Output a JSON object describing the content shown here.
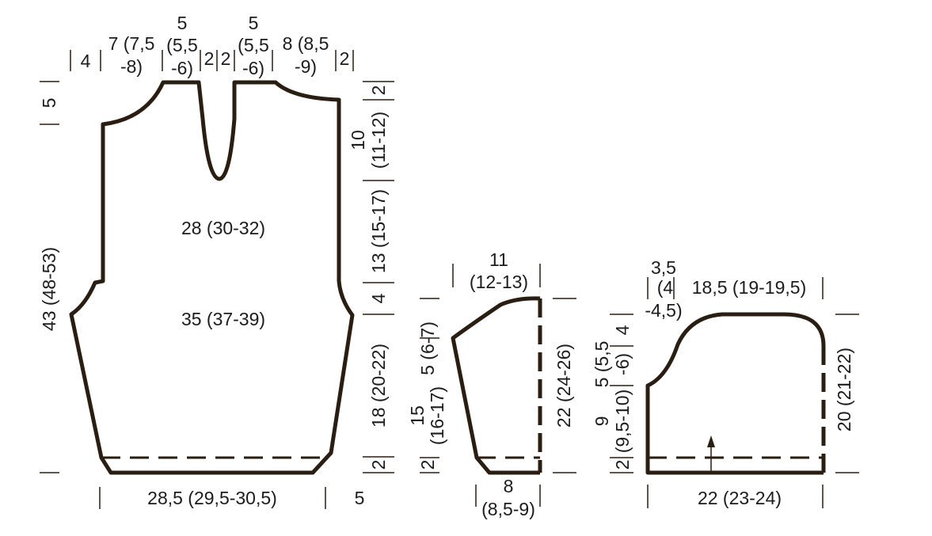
{
  "body": {
    "top": {
      "shoulder": "4",
      "shoulder_slope": [
        "7 (7,5",
        "-8)"
      ],
      "neck_left": [
        "5",
        "(5,5",
        "-6)"
      ],
      "front_gap_a": "2",
      "front_gap_b": "2",
      "neck_right": [
        "5",
        "(5,5",
        "-6)"
      ],
      "shoulder_slope_right": [
        "8 (8,5",
        "-9)"
      ],
      "shoulder_right": "2"
    },
    "left": {
      "shoulder_drop": "5",
      "total_height": "43 (48-53)"
    },
    "inner": {
      "upper_width": "28 (30-32)",
      "lower_width": "35 (37-39)"
    },
    "right": {
      "top_edge": "2",
      "neck_depth": [
        "10",
        "(11-12)"
      ],
      "armhole_upper": "13 (15-17)",
      "armhole_lower": "4",
      "side": "18 (20-22)",
      "hem": "2"
    },
    "bottom": {
      "width": "28,5 (29,5-30,5)",
      "border": "5"
    }
  },
  "sleeve": {
    "top_width": [
      "11",
      "(12-13)"
    ],
    "cap_slope": "5 (6-7)",
    "length_left": [
      "15",
      "(16-17)"
    ],
    "hem_left": "2",
    "length_right": "22 (24-26)",
    "bottom_width": [
      "8",
      "(8,5-9)"
    ]
  },
  "back": {
    "corner_top": "3,5",
    "corner_mid": "(4",
    "corner_bottom": "-4,5)",
    "top_width": "18,5 (19-19,5)",
    "shoulder_height": "4",
    "curve_height": [
      "5 (5,5",
      "-6)"
    ],
    "lower_height": [
      "9",
      "(9,5-10)"
    ],
    "hem": "2",
    "right_height": "20 (21-22)",
    "bottom_width": "22 (23-24)"
  }
}
